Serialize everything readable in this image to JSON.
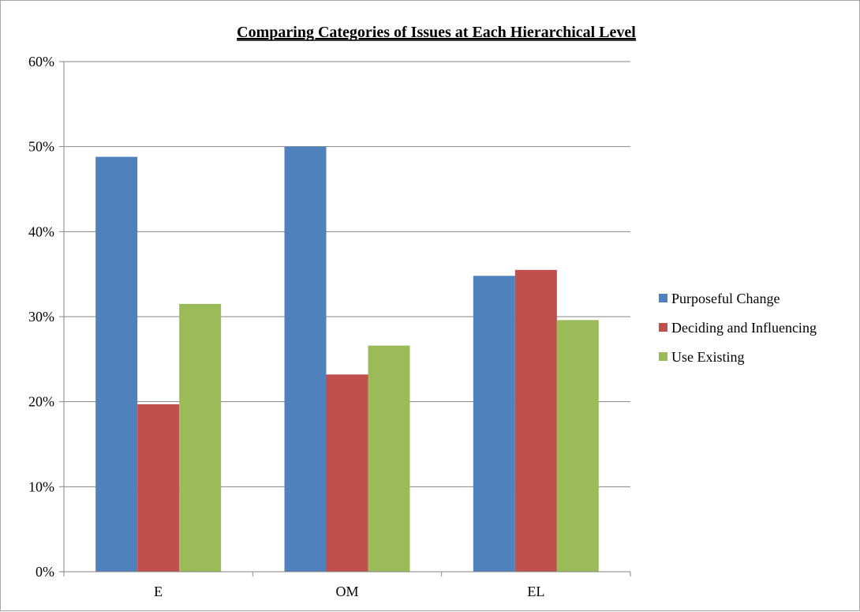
{
  "chart_data": {
    "type": "bar",
    "title": "Comparing Categories of Issues at Each Hierarchical Level",
    "xlabel": "",
    "ylabel": "",
    "categories": [
      "E",
      "OM",
      "EL"
    ],
    "ylim": [
      0,
      0.6
    ],
    "yticks": [
      0,
      0.1,
      0.2,
      0.3,
      0.4,
      0.5,
      0.6
    ],
    "ytick_labels": [
      "0%",
      "10%",
      "20%",
      "30%",
      "40%",
      "50%",
      "60%"
    ],
    "grid": true,
    "legend_position": "right",
    "series": [
      {
        "name": "Purposeful Change",
        "color": "#4f81bd",
        "values": [
          0.488,
          0.5,
          0.348
        ]
      },
      {
        "name": "Deciding and Influencing",
        "color": "#c0504d",
        "values": [
          0.197,
          0.232,
          0.355
        ]
      },
      {
        "name": "Use Existing",
        "color": "#9bbb59",
        "values": [
          0.315,
          0.266,
          0.296
        ]
      }
    ]
  }
}
